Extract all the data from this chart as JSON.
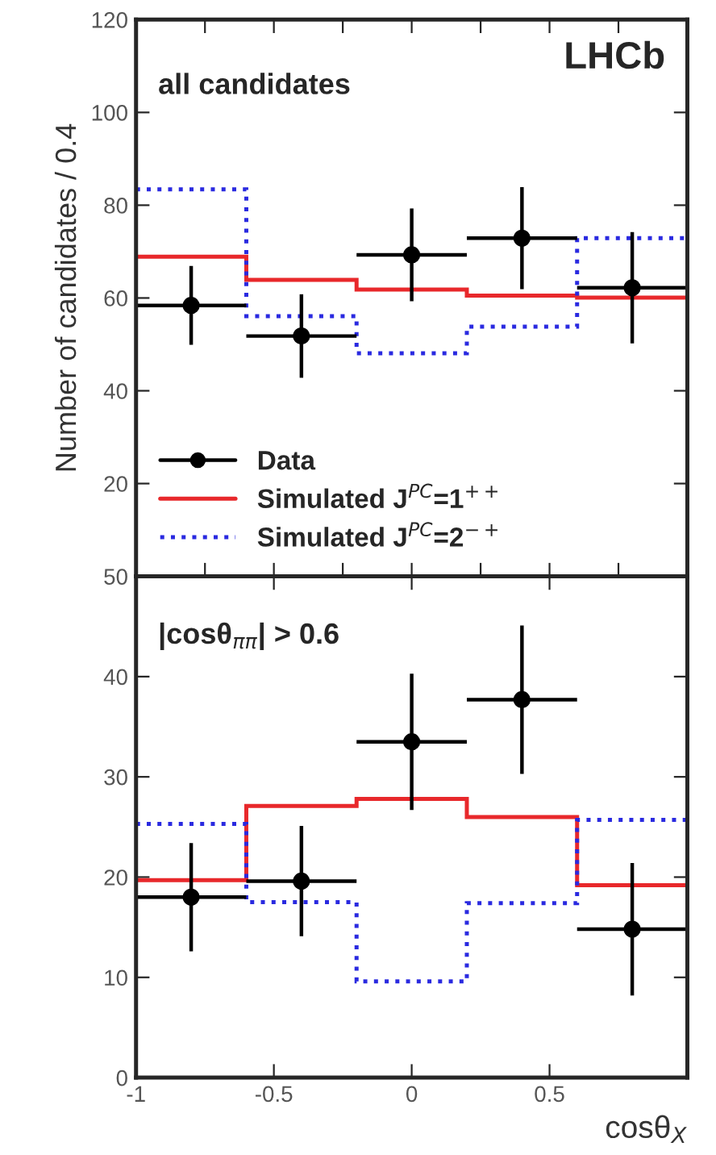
{
  "chart_data": [
    {
      "type": "scatter",
      "ylabel": "Number of candidates / 0.4",
      "annotations": [
        "all candidates",
        "LHCb"
      ],
      "x": [
        -0.8,
        -0.4,
        0,
        0.4,
        0.8
      ],
      "bins": [
        -1,
        -0.6,
        -0.2,
        0.2,
        0.6,
        1
      ],
      "xlim": [
        -1,
        1
      ],
      "ylim": [
        0,
        120
      ],
      "yticks": [
        20,
        40,
        60,
        80,
        100,
        120
      ],
      "tick_labels": "y",
      "legend": "bottom left",
      "grid": false,
      "series": [
        {
          "name": "Data",
          "color": "#000000",
          "values": [
            58.4,
            51.8,
            69.3,
            72.9,
            62.2
          ],
          "errors": [
            8.5,
            9,
            10,
            11,
            12
          ],
          "xerrors": [
            0.2,
            0.2,
            0.2,
            0.2,
            0.2
          ]
        },
        {
          "name": "Simulated J$^{PC}$=1$^{++}$",
          "type": "histogram",
          "color": "#e8282b",
          "line_style": "solid",
          "values": [
            68.9,
            63.9,
            61.8,
            60.5,
            60.1
          ]
        },
        {
          "name": "Simulated J$^{PC}$=2$^{−+}$",
          "type": "histogram",
          "color": "#2a2ae0",
          "line_style": "dotted",
          "values": [
            83.4,
            56.1,
            48.1,
            53.8,
            72.9
          ]
        }
      ]
    },
    {
      "type": "scatter",
      "xlabel": "cosθ$_{X}$",
      "annotations": [
        "|cosθ$_{ππ}$| > 0.6"
      ],
      "x": [
        -0.8,
        -0.4,
        0,
        0.4,
        0.8
      ],
      "bins": [
        -1,
        -0.6,
        -0.2,
        0.2,
        0.6,
        1
      ],
      "xlim": [
        -1,
        1
      ],
      "xticks": [
        -1,
        -0.5,
        0,
        0.5
      ],
      "ylim": [
        0,
        50
      ],
      "yticks": [
        0,
        10,
        20,
        30,
        40,
        50
      ],
      "grid": false,
      "series": [
        {
          "color": "#000000",
          "values": [
            18.0,
            19.6,
            33.5,
            37.7,
            14.8
          ],
          "errors": [
            5.4,
            5.5,
            6.8,
            7.4,
            6.6
          ],
          "xerrors": [
            0.2,
            0.2,
            0.2,
            0.2,
            0.2
          ]
        },
        {
          "type": "histogram",
          "color": "#e8282b",
          "line_style": "solid",
          "values": [
            19.7,
            27.1,
            27.8,
            26.0,
            19.2
          ]
        },
        {
          "type": "histogram",
          "color": "#2a2ae0",
          "line_style": "dotted",
          "values": [
            25.3,
            17.5,
            9.6,
            17.4,
            25.7
          ]
        }
      ]
    }
  ]
}
